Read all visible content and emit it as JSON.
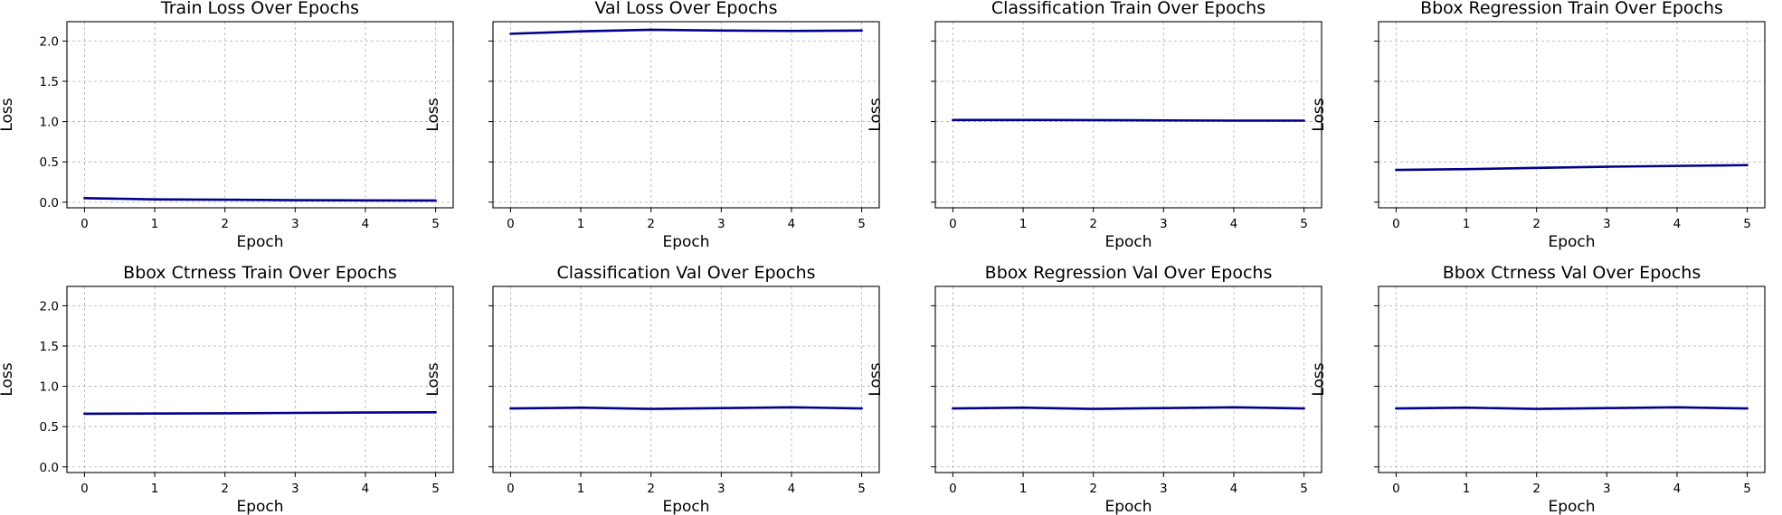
{
  "style": {
    "line_color": "#00008b",
    "grid_color": "#b0b0b0"
  },
  "chart_data": [
    {
      "type": "line",
      "title": "Train Loss Over Epochs",
      "xlabel": "Epoch",
      "ylabel": "Loss",
      "x": [
        0,
        1,
        2,
        3,
        4,
        5
      ],
      "values": [
        0.05,
        0.035,
        0.03,
        0.025,
        0.022,
        0.02
      ],
      "xlim": [
        -0.25,
        5.25
      ],
      "ylim": [
        -0.07,
        2.24
      ],
      "xticks": [
        0,
        1,
        2,
        3,
        4,
        5
      ],
      "yticks": [
        0.0,
        0.5,
        1.0,
        1.5,
        2.0
      ],
      "ytick_labels": [
        "0.0",
        "0.5",
        "1.0",
        "1.5",
        "2.0"
      ],
      "grid": true
    },
    {
      "type": "line",
      "title": "Val Loss Over Epochs",
      "xlabel": "Epoch",
      "ylabel": "Loss",
      "x": [
        0,
        1,
        2,
        3,
        4,
        5
      ],
      "values": [
        2.09,
        2.12,
        2.14,
        2.13,
        2.125,
        2.13
      ],
      "xlim": [
        -0.25,
        5.25
      ],
      "ylim": [
        -0.07,
        2.24
      ],
      "xticks": [
        0,
        1,
        2,
        3,
        4,
        5
      ],
      "yticks": [
        0.0,
        0.5,
        1.0,
        1.5,
        2.0
      ],
      "ytick_labels": [],
      "grid": true
    },
    {
      "type": "line",
      "title": "Classification Train Over Epochs",
      "xlabel": "Epoch",
      "ylabel": "Loss",
      "x": [
        0,
        1,
        2,
        3,
        4,
        5
      ],
      "values": [
        1.02,
        1.02,
        1.018,
        1.015,
        1.012,
        1.012
      ],
      "xlim": [
        -0.25,
        5.25
      ],
      "ylim": [
        -0.07,
        2.24
      ],
      "xticks": [
        0,
        1,
        2,
        3,
        4,
        5
      ],
      "yticks": [
        0.0,
        0.5,
        1.0,
        1.5,
        2.0
      ],
      "ytick_labels": [],
      "grid": true
    },
    {
      "type": "line",
      "title": "Bbox Regression Train Over Epochs",
      "xlabel": "Epoch",
      "ylabel": "Loss",
      "x": [
        0,
        1,
        2,
        3,
        4,
        5
      ],
      "values": [
        0.4,
        0.41,
        0.425,
        0.44,
        0.45,
        0.46
      ],
      "xlim": [
        -0.25,
        5.25
      ],
      "ylim": [
        -0.07,
        2.24
      ],
      "xticks": [
        0,
        1,
        2,
        3,
        4,
        5
      ],
      "yticks": [
        0.0,
        0.5,
        1.0,
        1.5,
        2.0
      ],
      "ytick_labels": [],
      "grid": true
    },
    {
      "type": "line",
      "title": "Bbox Ctrness Train Over Epochs",
      "xlabel": "Epoch",
      "ylabel": "Loss",
      "x": [
        0,
        1,
        2,
        3,
        4,
        5
      ],
      "values": [
        0.66,
        0.662,
        0.665,
        0.67,
        0.675,
        0.678
      ],
      "xlim": [
        -0.25,
        5.25
      ],
      "ylim": [
        -0.07,
        2.24
      ],
      "xticks": [
        0,
        1,
        2,
        3,
        4,
        5
      ],
      "yticks": [
        0.0,
        0.5,
        1.0,
        1.5,
        2.0
      ],
      "ytick_labels": [
        "0.0",
        "0.5",
        "1.0",
        "1.5",
        "2.0"
      ],
      "grid": true
    },
    {
      "type": "line",
      "title": "Classification Val Over Epochs",
      "xlabel": "Epoch",
      "ylabel": "Loss",
      "x": [
        0,
        1,
        2,
        3,
        4,
        5
      ],
      "values": [
        0.725,
        0.735,
        0.72,
        0.73,
        0.74,
        0.725
      ],
      "xlim": [
        -0.25,
        5.25
      ],
      "ylim": [
        -0.07,
        2.24
      ],
      "xticks": [
        0,
        1,
        2,
        3,
        4,
        5
      ],
      "yticks": [
        0.0,
        0.5,
        1.0,
        1.5,
        2.0
      ],
      "ytick_labels": [],
      "grid": true
    },
    {
      "type": "line",
      "title": "Bbox Regression Val Over Epochs",
      "xlabel": "Epoch",
      "ylabel": "Loss",
      "x": [
        0,
        1,
        2,
        3,
        4,
        5
      ],
      "values": [
        0.725,
        0.735,
        0.72,
        0.73,
        0.74,
        0.725
      ],
      "xlim": [
        -0.25,
        5.25
      ],
      "ylim": [
        -0.07,
        2.24
      ],
      "xticks": [
        0,
        1,
        2,
        3,
        4,
        5
      ],
      "yticks": [
        0.0,
        0.5,
        1.0,
        1.5,
        2.0
      ],
      "ytick_labels": [],
      "grid": true
    },
    {
      "type": "line",
      "title": "Bbox Ctrness Val Over Epochs",
      "xlabel": "Epoch",
      "ylabel": "Loss",
      "x": [
        0,
        1,
        2,
        3,
        4,
        5
      ],
      "values": [
        0.725,
        0.735,
        0.72,
        0.73,
        0.74,
        0.725
      ],
      "xlim": [
        -0.25,
        5.25
      ],
      "ylim": [
        -0.07,
        2.24
      ],
      "xticks": [
        0,
        1,
        2,
        3,
        4,
        5
      ],
      "yticks": [
        0.0,
        0.5,
        1.0,
        1.5,
        2.0
      ],
      "ytick_labels": [],
      "grid": true
    }
  ]
}
